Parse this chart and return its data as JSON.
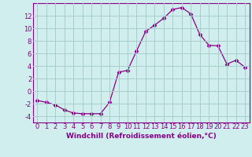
{
  "x": [
    0,
    1,
    2,
    3,
    4,
    5,
    6,
    7,
    8,
    9,
    10,
    11,
    12,
    13,
    14,
    15,
    16,
    17,
    18,
    19,
    20,
    21,
    22,
    23
  ],
  "y": [
    -1.5,
    -1.8,
    -2.2,
    -3.0,
    -3.5,
    -3.6,
    -3.6,
    -3.6,
    -1.8,
    3.0,
    3.3,
    6.4,
    9.5,
    10.5,
    11.6,
    13.0,
    13.3,
    12.3,
    9.0,
    7.3,
    7.2,
    4.3,
    4.9,
    3.8
  ],
  "line_color": "#880088",
  "marker": "D",
  "marker_size": 2.5,
  "bg_color": "#d0eeee",
  "grid_color": "#aacccc",
  "xlabel": "Windchill (Refroidissement éolien,°C)",
  "xlabel_color": "#880088",
  "tick_color": "#880088",
  "spine_color": "#880088",
  "ylim": [
    -5,
    14
  ],
  "xlim": [
    -0.5,
    23.5
  ],
  "yticks": [
    -4,
    -2,
    0,
    2,
    4,
    6,
    8,
    10,
    12
  ],
  "xticks": [
    0,
    1,
    2,
    3,
    4,
    5,
    6,
    7,
    8,
    9,
    10,
    11,
    12,
    13,
    14,
    15,
    16,
    17,
    18,
    19,
    20,
    21,
    22,
    23
  ],
  "tick_fontsize": 6.0,
  "xlabel_fontsize": 6.5
}
